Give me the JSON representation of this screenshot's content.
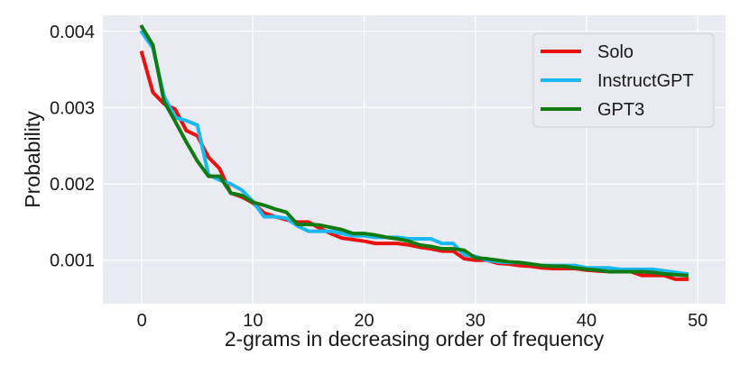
{
  "chart_data": {
    "type": "line",
    "title": "",
    "xlabel": "2-grams in decreasing order of frequency",
    "ylabel": "Probability",
    "xlim": [
      -3.5,
      52.5
    ],
    "ylim": [
      0.00043,
      0.00421
    ],
    "xticks": [
      0,
      10,
      20,
      30,
      40,
      50
    ],
    "xtick_labels": [
      "0",
      "10",
      "20",
      "30",
      "40",
      "50"
    ],
    "yticks": [
      0.001,
      0.002,
      0.003,
      0.004
    ],
    "ytick_labels": [
      "0.001",
      "0.002",
      "0.003",
      "0.004"
    ],
    "grid": true,
    "legend_position": "top-right",
    "x": [
      0,
      1,
      2,
      3,
      4,
      5,
      6,
      7,
      8,
      9,
      10,
      11,
      12,
      13,
      14,
      15,
      16,
      17,
      18,
      19,
      20,
      21,
      22,
      23,
      24,
      25,
      26,
      27,
      28,
      29,
      30,
      31,
      32,
      33,
      34,
      35,
      36,
      37,
      38,
      39,
      40,
      41,
      42,
      43,
      44,
      45,
      46,
      47,
      48,
      49
    ],
    "series": [
      {
        "name": "Solo",
        "color": "#e8110e",
        "values": [
          0.00372,
          0.0032,
          0.00305,
          0.00298,
          0.0027,
          0.00263,
          0.00235,
          0.0022,
          0.00188,
          0.00183,
          0.00175,
          0.00162,
          0.00157,
          0.00153,
          0.0015,
          0.0015,
          0.00142,
          0.00135,
          0.00129,
          0.00127,
          0.00125,
          0.00122,
          0.00122,
          0.00122,
          0.0012,
          0.00117,
          0.00115,
          0.00112,
          0.00112,
          0.00102,
          0.001,
          0.001,
          0.00096,
          0.00095,
          0.00093,
          0.00092,
          0.0009,
          0.00089,
          0.00089,
          0.00089,
          0.00087,
          0.00086,
          0.00085,
          0.00085,
          0.00085,
          0.0008,
          0.0008,
          0.0008,
          0.00075,
          0.00075
        ]
      },
      {
        "name": "InstructGPT",
        "color": "#1ab8f0",
        "values": [
          0.00399,
          0.00378,
          0.00315,
          0.00287,
          0.00283,
          0.00277,
          0.00212,
          0.00205,
          0.002,
          0.00192,
          0.00177,
          0.00157,
          0.00157,
          0.00155,
          0.00145,
          0.00138,
          0.00138,
          0.00138,
          0.00135,
          0.00132,
          0.00132,
          0.0013,
          0.0013,
          0.0013,
          0.00128,
          0.00128,
          0.00128,
          0.00122,
          0.00122,
          0.00107,
          0.00105,
          0.001,
          0.00098,
          0.00097,
          0.00097,
          0.00095,
          0.00093,
          0.00093,
          0.00093,
          0.00093,
          0.0009,
          0.0009,
          0.0009,
          0.00088,
          0.00088,
          0.00088,
          0.00088,
          0.00086,
          0.00084,
          0.00082
        ]
      },
      {
        "name": "GPT3",
        "color": "#117a11",
        "values": [
          0.00406,
          0.00382,
          0.00308,
          0.00282,
          0.00255,
          0.0023,
          0.0021,
          0.0021,
          0.00188,
          0.00185,
          0.00176,
          0.00172,
          0.00167,
          0.00163,
          0.00147,
          0.00147,
          0.00146,
          0.00143,
          0.0014,
          0.00135,
          0.00135,
          0.00133,
          0.0013,
          0.00128,
          0.00125,
          0.0012,
          0.00118,
          0.00115,
          0.00115,
          0.00113,
          0.00103,
          0.00102,
          0.001,
          0.00098,
          0.00097,
          0.00095,
          0.00093,
          0.00092,
          0.00092,
          0.0009,
          0.00088,
          0.00087,
          0.00085,
          0.00085,
          0.00085,
          0.00085,
          0.00084,
          0.00082,
          0.00081,
          0.0008
        ]
      }
    ]
  }
}
